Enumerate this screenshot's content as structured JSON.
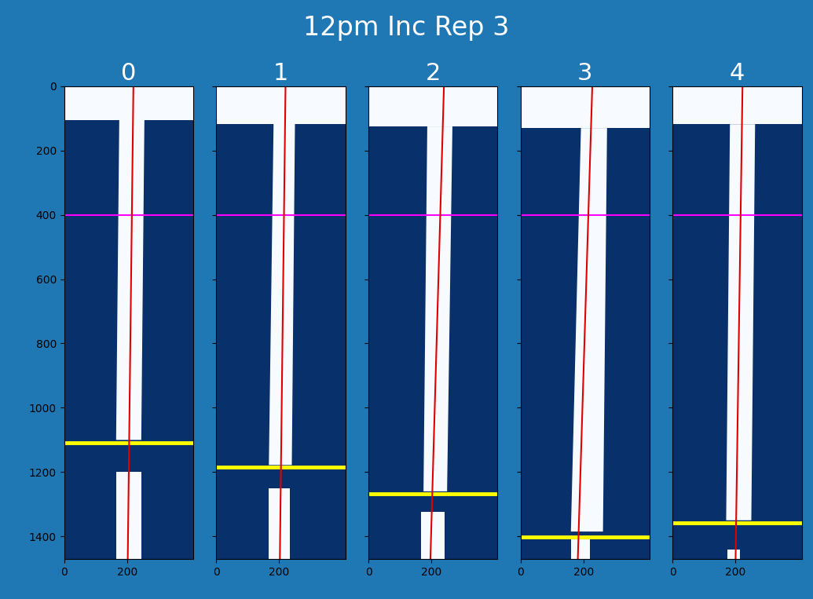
{
  "chart_data": {
    "type": "image",
    "title": "12pm Inc Rep 3",
    "xlim": [
      0,
      410
    ],
    "ylim": [
      1470,
      0
    ],
    "xticks": [
      0,
      200
    ],
    "yticks": [
      0,
      200,
      400,
      600,
      800,
      1000,
      1200,
      1400
    ],
    "tick_labels": true,
    "reference_y": 400,
    "panels": [
      {
        "title": "0",
        "band_bottom": 105,
        "stem": {
          "x_top": [
            175,
            255
          ],
          "x_bottom": [
            165,
            245
          ],
          "y_end": 1100
        },
        "lower_piece": {
          "x": [
            165,
            245
          ],
          "y": [
            1200,
            1470
          ]
        },
        "red_line": {
          "x": [
            220,
            202
          ],
          "y": [
            0,
            1470
          ]
        },
        "cut_y": 1110
      },
      {
        "title": "1",
        "band_bottom": 117,
        "stem": {
          "x_top": [
            182,
            250
          ],
          "x_bottom": [
            167,
            240
          ],
          "y_end": 1178
        },
        "lower_piece": {
          "x": [
            167,
            235
          ],
          "y": [
            1250,
            1470
          ]
        },
        "red_line": {
          "x": [
            220,
            202
          ],
          "y": [
            0,
            1470
          ]
        },
        "cut_y": 1185
      },
      {
        "title": "2",
        "band_bottom": 125,
        "stem": {
          "x_top": [
            187,
            267
          ],
          "x_bottom": [
            175,
            250
          ],
          "y_end": 1260
        },
        "lower_piece": {
          "x": [
            167,
            242
          ],
          "y": [
            1325,
            1470
          ]
        },
        "red_line": {
          "x": [
            240,
            197
          ],
          "y": [
            0,
            1470
          ]
        },
        "cut_y": 1268
      },
      {
        "title": "3",
        "band_bottom": 130,
        "stem": {
          "x_top": [
            192,
            275
          ],
          "x_bottom": [
            160,
            262
          ],
          "y_end": 1385
        },
        "lower_piece": {
          "x": [
            160,
            220
          ],
          "y": [
            1410,
            1470
          ]
        },
        "red_line": {
          "x": [
            228,
            182
          ],
          "y": [
            0,
            1470
          ]
        },
        "cut_y": 1403
      },
      {
        "title": "4",
        "band_bottom": 118,
        "stem": {
          "x_top": [
            182,
            262
          ],
          "x_bottom": [
            170,
            250
          ],
          "y_end": 1350
        },
        "lower_piece": {
          "x": [
            175,
            215
          ],
          "y": [
            1440,
            1470
          ]
        },
        "red_line": {
          "x": [
            222,
            200
          ],
          "y": [
            0,
            1470
          ]
        },
        "cut_y": 1358
      }
    ]
  }
}
